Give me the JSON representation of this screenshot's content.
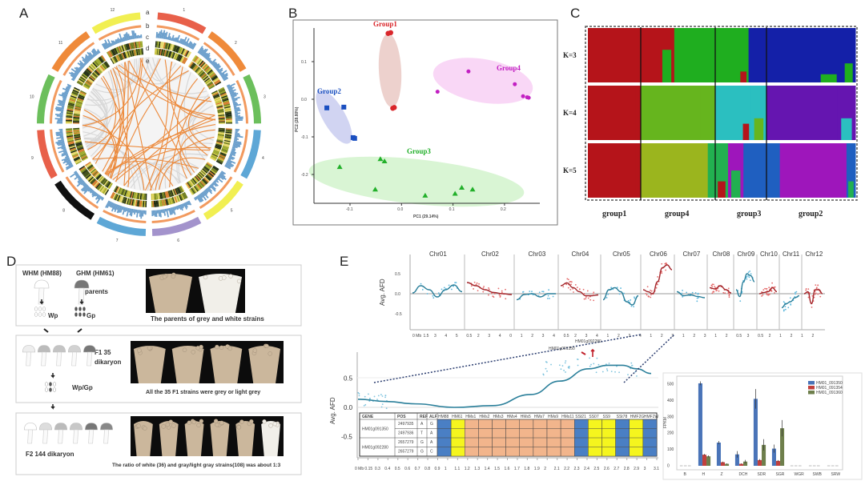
{
  "panel_labels": {
    "A": "A",
    "B": "B",
    "C": "C",
    "D": "D",
    "E": "E"
  },
  "circos": {
    "track_labels": [
      "a",
      "b",
      "c",
      "d",
      "e"
    ],
    "chromosomes": [
      {
        "name": "1",
        "color": "#e8604a"
      },
      {
        "name": "2",
        "color": "#ef8a3a"
      },
      {
        "name": "3",
        "color": "#6cbf5c"
      },
      {
        "name": "4",
        "color": "#5ea7d6"
      },
      {
        "name": "5",
        "color": "#f1ef52"
      },
      {
        "name": "6",
        "color": "#a393cc"
      },
      {
        "name": "7",
        "color": "#5ea7d6"
      },
      {
        "name": "8",
        "color": "#111111"
      },
      {
        "name": "9",
        "color": "#e8604a"
      },
      {
        "name": "10",
        "color": "#6cbf5c"
      },
      {
        "name": "11",
        "color": "#ef8a3a"
      },
      {
        "name": "12",
        "color": "#f1ef52"
      }
    ]
  },
  "breeding": {
    "parent_white": "WHM (HM88)",
    "parent_grey": "GHM (HM61)",
    "parents_label": "parents",
    "wp": "Wp",
    "gp": "Gp",
    "parents_caption": "The parents of grey and white strains",
    "f1_label": "F1  35",
    "f1_sub": "dikaryon",
    "wpgp": "Wp/Gp",
    "f1_caption": "All the 35 F1 strains were grey or light grey",
    "f2_label": "F2  144 dikaryon",
    "f2_caption": "The ratio of white (36) and gray/light gray strains(108) was about 1:3"
  },
  "gene_table": {
    "headers": [
      "GENE",
      "POS",
      "REF",
      "ALF"
    ],
    "strains": [
      "HM88",
      "HM61",
      "HMs1",
      "HMs2",
      "HMs3",
      "HMs4",
      "HMs5",
      "HMs7",
      "HMs9",
      "HMs11",
      "SSt21",
      "SS07",
      "SS9",
      "SSt78",
      "HMF2G",
      "HMF2W"
    ],
    "strain_genotype": [
      "white",
      "grey",
      "mixed",
      "mixed",
      "mixed",
      "mixed",
      "mixed",
      "mixed",
      "mixed",
      "mixed",
      "white",
      "grey",
      "grey",
      "white",
      "grey",
      "white"
    ],
    "genotype_colors": {
      "white": "#4a7fc4",
      "grey": "#f5f51e",
      "mixed": "#f2b58c"
    },
    "genes": [
      {
        "gene": "HM01g091350",
        "rows": [
          {
            "pos": "2497935",
            "ref": "A",
            "alf": "G"
          },
          {
            "pos": "2497936",
            "ref": "T",
            "alf": "A"
          }
        ]
      },
      {
        "gene": "HM01g092280",
        "rows": [
          {
            "pos": "2657279",
            "ref": "G",
            "alf": "A"
          },
          {
            "pos": "2657279",
            "ref": "G",
            "alf": "C"
          }
        ]
      }
    ]
  },
  "chart_data": [
    {
      "id": "pca",
      "type": "scatter",
      "xlabel": "PC1 (29.14%)",
      "ylabel": "PC2 (28.80%)",
      "xlim": [
        -0.16,
        0.26
      ],
      "ylim": [
        -0.28,
        0.2
      ],
      "xticks": [
        -0.1,
        0.0,
        0.1,
        0.2
      ],
      "yticks": [
        -0.2,
        -0.1,
        0.0,
        0.1
      ],
      "xtick_labels": [
        "-0.1",
        "0.0",
        "0.1",
        "0.2"
      ],
      "ytick_labels": [
        "-0.2",
        "-0.1",
        "0.0",
        "0.1"
      ],
      "series": [
        {
          "name": "Group1",
          "color": "#d9262b",
          "fill": "#e9c5c0",
          "marker": "circle",
          "points": [
            [
              -0.026,
              0.175
            ],
            [
              -0.021,
              0.177
            ],
            [
              -0.017,
              -0.024
            ],
            [
              -0.014,
              -0.022
            ]
          ]
        },
        {
          "name": "Group2",
          "color": "#1a4fc0",
          "fill": "#c6c9ef",
          "marker": "square",
          "points": [
            [
              -0.145,
              -0.023
            ],
            [
              -0.112,
              -0.021
            ],
            [
              -0.094,
              -0.102
            ],
            [
              -0.091,
              -0.104
            ]
          ]
        },
        {
          "name": "Group3",
          "color": "#22b02a",
          "fill": "#cff3c9",
          "marker": "triangle",
          "points": [
            [
              -0.12,
              -0.18
            ],
            [
              -0.041,
              -0.159
            ],
            [
              -0.033,
              -0.165
            ],
            [
              -0.051,
              -0.24
            ],
            [
              0.046,
              -0.256
            ],
            [
              0.104,
              -0.251
            ],
            [
              0.117,
              -0.235
            ],
            [
              0.138,
              -0.24
            ]
          ]
        },
        {
          "name": "Group4",
          "color": "#c21fc2",
          "fill": "#f7cdf4",
          "marker": "circle",
          "points": [
            [
              0.07,
              0.02
            ],
            [
              0.13,
              0.074
            ],
            [
              0.22,
              0.04
            ],
            [
              0.236,
              0.008
            ],
            [
              0.244,
              0.005
            ],
            [
              0.247,
              0.004
            ]
          ]
        }
      ]
    },
    {
      "id": "structure",
      "type": "bar",
      "groups": [
        "group1",
        "group4",
        "group3",
        "group2"
      ],
      "rows": [
        {
          "label": "K=3",
          "blocks": [
            [
              [
                "#b5141a",
                1.0,
                null,
                0
              ]
            ],
            [
              [
                "#b5141a",
                0.25,
                null,
                0
              ],
              [
                "#b5141a",
                0.2,
                "#1fae1f",
                0.6
              ],
              [
                "#1fae1f",
                0.55,
                null,
                0
              ]
            ],
            [
              [
                "#1fae1f",
                0.45,
                null,
                0
              ],
              [
                "#1fae1f",
                0.2,
                "#b5141a",
                0.2
              ],
              [
                "#1420a8",
                0.35,
                null,
                0
              ]
            ],
            [
              [
                "#1420a8",
                0.55,
                null,
                0
              ],
              [
                "#1420a8",
                0.3,
                "#1fae1f",
                0.15
              ],
              [
                "#1420a8",
                0.15,
                "#1fae1f",
                0.35
              ]
            ]
          ]
        },
        {
          "label": "K=4",
          "blocks": [
            [
              [
                "#b5141a",
                0.9,
                null,
                0
              ],
              [
                "#b5141a",
                0.1,
                "#6515b0",
                0
              ]
            ],
            [
              [
                "#66b51e",
                0.8,
                null,
                0
              ],
              [
                "#66b51e",
                0.2,
                null,
                0
              ]
            ],
            [
              [
                "#2bbfc0",
                0.5,
                null,
                0
              ],
              [
                "#2bbfc0",
                0.2,
                "#b5141a",
                0.3
              ],
              [
                "#2bbfc0",
                0.3,
                "#66b51e",
                0.4
              ]
            ],
            [
              [
                "#6515b0",
                0.8,
                null,
                0
              ],
              [
                "#6515b0",
                0.2,
                "#2bbfc0",
                0.4
              ]
            ]
          ]
        },
        {
          "label": "K=5",
          "blocks": [
            [
              [
                "#b5141a",
                0.9,
                null,
                0
              ],
              [
                "#b5141a",
                0.1,
                "#9bb51e",
                0
              ]
            ],
            [
              [
                "#9bb51e",
                0.9,
                null,
                0
              ],
              [
                "#22b050",
                0.1,
                null,
                0
              ]
            ],
            [
              [
                "#22b050",
                0.25,
                "#b5141a",
                0.3
              ],
              [
                "#9e16bb",
                0.3,
                "#22b050",
                0.5
              ],
              [
                "#1f5fc0",
                0.45,
                null,
                0
              ]
            ],
            [
              [
                "#1f5fc0",
                0.15,
                null,
                0
              ],
              [
                "#9e16bb",
                0.75,
                null,
                0
              ],
              [
                "#1f5fc0",
                0.1,
                "#22b050",
                0.3
              ]
            ]
          ]
        }
      ]
    },
    {
      "id": "afd-genome",
      "type": "line",
      "ylabel": "Avg. AFD",
      "ylim": [
        -0.9,
        0.9
      ],
      "yticks": [
        -0.5,
        0.0,
        0.5
      ],
      "ytick_labels": [
        "-0.5",
        "0.0",
        "0.5"
      ],
      "xtick_labels": [
        "0 Mb",
        "1.5",
        "3",
        "4",
        "5",
        "0.5",
        "2",
        "3",
        "4",
        "0",
        "1",
        "2",
        "3",
        "4",
        "0.5",
        "2",
        "3",
        "4",
        "1",
        "2",
        "3",
        "4",
        "1",
        "2",
        "3",
        "1",
        "2",
        "3",
        "1",
        "2",
        "0.5",
        "3",
        "0.5",
        "2",
        "1",
        "2",
        "1",
        "2"
      ],
      "chromosomes": [
        {
          "name": "Chr01",
          "trend": "low",
          "values": [
            0.02,
            0.2,
            0.1,
            -0.08,
            0.1,
            0.22,
            0.05
          ]
        },
        {
          "name": "Chr02",
          "trend": "high",
          "values": [
            0.28,
            0.2,
            0.1,
            0.03,
            0.0,
            -0.02
          ]
        },
        {
          "name": "Chr03",
          "trend": "low",
          "values": [
            -0.15,
            -0.02,
            0.0,
            -0.08,
            0.0,
            0.0
          ]
        },
        {
          "name": "Chr04",
          "trend": "high",
          "values": [
            0.2,
            0.27,
            0.15,
            0.05,
            -0.05,
            -0.05,
            -0.03
          ]
        },
        {
          "name": "Chr05",
          "trend": "low",
          "values": [
            -0.15,
            0.1,
            0.15,
            0.05,
            -0.2,
            -0.28,
            -0.05
          ]
        },
        {
          "name": "Chr06",
          "trend": "high",
          "values": [
            0.1,
            0.05,
            0.0,
            0.3,
            0.65,
            0.72,
            0.6
          ]
        },
        {
          "name": "Chr07",
          "trend": "low",
          "values": [
            0.05,
            -0.05,
            -0.03,
            -0.07,
            -0.1
          ]
        },
        {
          "name": "Chr08",
          "trend": "high",
          "values": [
            0.15,
            0.12,
            0.2,
            0.1,
            0.02
          ]
        },
        {
          "name": "Chr09",
          "trend": "low",
          "values": [
            0.1,
            -0.07,
            0.3,
            0.5,
            0.45,
            0.3
          ]
        },
        {
          "name": "Chr10",
          "trend": "high",
          "values": [
            0.0,
            0.03,
            0.05,
            0.15,
            0.05
          ]
        },
        {
          "name": "Chr11",
          "trend": "low",
          "values": [
            -0.35,
            -0.25,
            -0.2,
            -0.1,
            -0.05
          ]
        },
        {
          "name": "Chr12",
          "trend": "high",
          "values": [
            0.0,
            0.05,
            -0.25,
            0.1,
            0.1,
            0.0
          ]
        }
      ],
      "colors": {
        "high": "#a3262b",
        "low": "#2a7f9a",
        "high_points": "#e56a6a",
        "low_points": "#5bb7dc"
      }
    },
    {
      "id": "afd-chr06-region",
      "type": "line",
      "ylabel": "Avg. AFD",
      "xlim": [
        0,
        3.1
      ],
      "yticks": [
        -0.5,
        0.0,
        0.5
      ],
      "ytick_labels": [
        "-0.5",
        "0.0",
        "0.5"
      ],
      "xtick_labels": [
        "0 Mb",
        "0.15",
        "0.3",
        "0.4",
        "0.5",
        "0.6",
        "0.7",
        "0.8",
        "0.9",
        "1",
        "1.1",
        "1.2",
        "1.3",
        "1.4",
        "1.5",
        "1.6",
        "1.7",
        "1.8",
        "1.9",
        "2",
        "2.1",
        "2.2",
        "2.3",
        "2.4",
        "2.5",
        "2.6",
        "2.7",
        "2.8",
        "2.9",
        "3",
        "3.1"
      ],
      "x": [
        0,
        0.3,
        0.6,
        1.0,
        1.4,
        1.8,
        2.1,
        2.4,
        2.6,
        2.75,
        2.9,
        3.05
      ],
      "y": [
        0.14,
        0.1,
        0.06,
        0.0,
        0.03,
        0.22,
        0.45,
        0.66,
        0.72,
        0.72,
        0.66,
        0.58
      ],
      "annotations": [
        "HM01g091350",
        "HM01g092280"
      ]
    },
    {
      "id": "expression",
      "type": "bar",
      "ylabel": "FPKM",
      "ylim": [
        0,
        520
      ],
      "yticks": [
        0,
        100,
        200,
        300,
        400,
        500
      ],
      "ytick_labels": [
        "0",
        "100",
        "200",
        "300",
        "400",
        "500"
      ],
      "categories": [
        "B",
        "H",
        "Z",
        "DCH",
        "SDR",
        "SGR",
        "WGR",
        "SWB",
        "SRW"
      ],
      "series": [
        {
          "name": "HM01_091350",
          "color": "#4a74b8",
          "values": [
            0,
            505,
            142,
            70,
            410,
            105,
            0,
            0,
            0
          ],
          "errors": [
            0,
            12,
            10,
            20,
            60,
            25,
            0,
            0,
            0
          ]
        },
        {
          "name": "HM01_091354",
          "color": "#c2403d",
          "values": [
            0,
            68,
            22,
            12,
            35,
            30,
            0,
            0,
            0
          ],
          "errors": [
            0,
            5,
            4,
            3,
            6,
            5,
            0,
            0,
            0
          ]
        },
        {
          "name": "HM01_091360",
          "color": "#6e7f4c",
          "values": [
            0,
            58,
            12,
            26,
            128,
            230,
            0,
            0,
            0
          ],
          "errors": [
            0,
            6,
            3,
            10,
            35,
            50,
            0,
            0,
            0
          ]
        }
      ]
    }
  ]
}
